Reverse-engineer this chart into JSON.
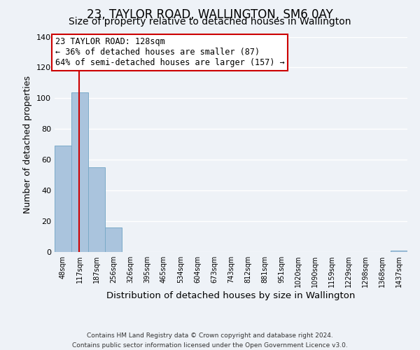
{
  "title": "23, TAYLOR ROAD, WALLINGTON, SM6 0AY",
  "subtitle": "Size of property relative to detached houses in Wallington",
  "xlabel": "Distribution of detached houses by size in Wallington",
  "ylabel": "Number of detached properties",
  "footer_lines": [
    "Contains HM Land Registry data © Crown copyright and database right 2024.",
    "Contains public sector information licensed under the Open Government Licence v3.0."
  ],
  "bar_labels": [
    "48sqm",
    "117sqm",
    "187sqm",
    "256sqm",
    "326sqm",
    "395sqm",
    "465sqm",
    "534sqm",
    "604sqm",
    "673sqm",
    "743sqm",
    "812sqm",
    "881sqm",
    "951sqm",
    "1020sqm",
    "1090sqm",
    "1159sqm",
    "1229sqm",
    "1298sqm",
    "1368sqm",
    "1437sqm"
  ],
  "bar_values": [
    69,
    104,
    55,
    16,
    0,
    0,
    0,
    0,
    0,
    0,
    0,
    0,
    0,
    0,
    0,
    0,
    0,
    0,
    0,
    0,
    1
  ],
  "bar_color": "#aac4dd",
  "bar_edgecolor": "#7aaac8",
  "ylim": [
    0,
    140
  ],
  "yticks": [
    0,
    20,
    40,
    60,
    80,
    100,
    120,
    140
  ],
  "property_line_x": 1.47,
  "property_line_color": "#cc0000",
  "annotation_text": "23 TAYLOR ROAD: 128sqm\n← 36% of detached houses are smaller (87)\n64% of semi-detached houses are larger (157) →",
  "annotation_box_edgecolor": "#cc0000",
  "annotation_box_facecolor": "#ffffff",
  "background_color": "#eef2f7",
  "grid_color": "#ffffff",
  "title_fontsize": 12,
  "subtitle_fontsize": 10
}
